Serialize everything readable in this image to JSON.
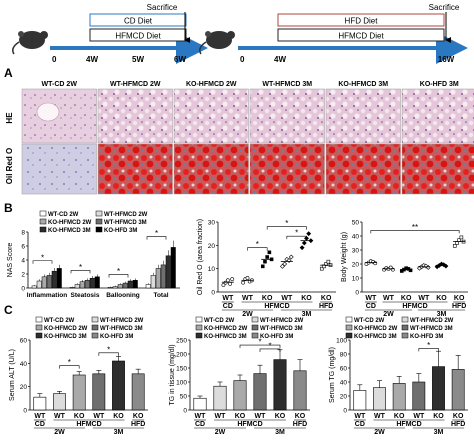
{
  "timeline": {
    "left": {
      "top_box": "CD Diet",
      "bottom_box": "HFMCD Diet",
      "sacrifice": "Sacrifice",
      "ticks": [
        "0",
        "4W",
        "5W",
        "6W"
      ]
    },
    "right": {
      "top_box": "HFD Diet",
      "bottom_box": "HFMCD Diet",
      "sacrifice": "Sacrifice",
      "ticks": [
        "0",
        "4W",
        "16W"
      ]
    },
    "colors": {
      "arrow": "#2a78c2",
      "cd_box": "#2a78c2",
      "hfd_box": "#b0453d"
    }
  },
  "panel_a": {
    "letter": "A",
    "columns": [
      "WT-CD 2W",
      "WT-HFMCD 2W",
      "KO-HFMCD 2W",
      "WT-HFMCD 3M",
      "KO-HFMCD 3M",
      "KO-HFD 3M"
    ],
    "rows": [
      "HE",
      "Oil Red O"
    ]
  },
  "panel_b": {
    "letter": "B",
    "legend": [
      "WT-CD 2W",
      "WT-HFMCD 2W",
      "KO-HFMCD 2W",
      "WT-HFMCD 3M",
      "KO-HFMCD 3M",
      "KO-HFD 3M"
    ]
  },
  "panel_c": {
    "letter": "C",
    "legend": [
      "WT-CD 2W",
      "WT-HFMCD 2W",
      "KO-HFMCD 2W",
      "WT-HFMCD 3M",
      "KO-HFMCD 3M",
      "KO-HFD 3M"
    ]
  },
  "group_labels": {
    "wt": "WT",
    "ko": "KO",
    "cd": "CD",
    "hfmcd": "HFMCD",
    "hfd": "HFD",
    "t2w": "2W",
    "t3m": "3M"
  },
  "chart_data": [
    {
      "type": "bar",
      "id": "nas",
      "ylabel": "NAS Score",
      "ylim": [
        0,
        8
      ],
      "yticks": [
        0,
        2,
        4,
        6,
        8
      ],
      "categories": [
        "Inflammation",
        "Steatosis",
        "Ballooning",
        "Total"
      ],
      "series": [
        {
          "name": "WT-CD 2W",
          "values": [
            0.3,
            0.1,
            0.1,
            0.5
          ]
        },
        {
          "name": "WT-HFMCD 2W",
          "values": [
            1.0,
            0.5,
            0.2,
            1.8
          ]
        },
        {
          "name": "KO-HFMCD 2W",
          "values": [
            1.6,
            0.9,
            0.5,
            2.8
          ]
        },
        {
          "name": "WT-HFMCD 3M",
          "values": [
            1.8,
            1.1,
            0.7,
            3.3
          ]
        },
        {
          "name": "KO-HFMCD 3M",
          "values": [
            2.4,
            1.4,
            1.0,
            4.6
          ]
        },
        {
          "name": "KO-HFD 3M",
          "values": [
            2.8,
            1.6,
            1.1,
            5.8
          ]
        }
      ],
      "colors": [
        "#ffffff",
        "#dcdcdc",
        "#a9a9a9",
        "#6f6f6f",
        "#2e2e2e",
        "#000000"
      ],
      "significance": [
        "*",
        "*",
        "*",
        "*"
      ]
    },
    {
      "type": "scatter",
      "id": "oilredo",
      "ylabel": "Oil Red O (area fraction)",
      "ylim": [
        0,
        30
      ],
      "yticks": [
        0,
        10,
        20,
        30
      ],
      "groups": [
        "WT-CD 2W",
        "WT-HFMCD 2W",
        "KO-HFMCD 2W",
        "WT-HFMCD 3M",
        "KO-HFMCD 3M",
        "KO-HFD 3M"
      ],
      "values": [
        [
          3,
          4,
          5,
          3.5,
          5.5
        ],
        [
          4,
          5.5,
          6,
          4.5,
          5
        ],
        [
          11,
          13,
          15,
          17,
          14
        ],
        [
          11,
          12,
          14,
          13.5,
          15
        ],
        [
          19,
          21,
          23,
          25,
          22
        ],
        [
          10,
          11,
          12,
          13,
          11.5
        ]
      ],
      "means": [
        4.2,
        5.0,
        14.0,
        13.1,
        22.0,
        11.5
      ],
      "significance": [
        "*",
        "*",
        "*"
      ]
    },
    {
      "type": "scatter",
      "id": "bodyweight",
      "ylabel": "Body Weight (g)",
      "ylim": [
        0,
        50
      ],
      "yticks": [
        0,
        10,
        20,
        30,
        40,
        50
      ],
      "groups": [
        "WT-CD 2W",
        "WT-HFMCD 2W",
        "KO-HFMCD 2W",
        "WT-HFMCD 3M",
        "KO-HFMCD 3M",
        "KO-HFD 3M"
      ],
      "values": [
        [
          20,
          21,
          22,
          21.5,
          20.5
        ],
        [
          16,
          17,
          16.5,
          17.5,
          16
        ],
        [
          15,
          16,
          17,
          16.5,
          15.5
        ],
        [
          17,
          18,
          19,
          18.5,
          17.5
        ],
        [
          18,
          19,
          20,
          19.5,
          18.5
        ],
        [
          33,
          35,
          37,
          39,
          36
        ]
      ],
      "means": [
        21,
        16.6,
        16,
        18,
        19,
        36
      ],
      "significance": [
        "**"
      ]
    },
    {
      "type": "bar",
      "id": "alt",
      "ylabel": "Serum ALT (U/L)",
      "ylim": [
        0,
        60
      ],
      "yticks": [
        0,
        20,
        40,
        60
      ],
      "categories": [
        "WT-CD 2W",
        "WT-HFMCD 2W",
        "KO-HFMCD 2W",
        "WT-HFMCD 3M",
        "KO-HFMCD 3M",
        "KO-HFD 3M"
      ],
      "values": [
        11,
        14,
        30,
        31,
        42,
        31
      ],
      "errors": [
        3,
        2,
        3,
        3,
        4,
        4
      ],
      "colors": [
        "#ffffff",
        "#dcdcdc",
        "#a9a9a9",
        "#6f6f6f",
        "#2e2e2e",
        "#8a8a8a"
      ],
      "significance": [
        "*",
        "*"
      ]
    },
    {
      "type": "bar",
      "id": "tg_tissue",
      "ylabel": "TG in tissue (mg/dl)",
      "ylim": [
        0,
        250
      ],
      "yticks": [
        0,
        50,
        100,
        150,
        200,
        250
      ],
      "categories": [
        "WT-CD 2W",
        "WT-HFMCD 2W",
        "KO-HFMCD 2W",
        "WT-HFMCD 3M",
        "KO-HFMCD 3M",
        "KO-HFD 3M"
      ],
      "values": [
        42,
        85,
        105,
        130,
        180,
        140
      ],
      "errors": [
        8,
        15,
        20,
        30,
        35,
        40
      ],
      "colors": [
        "#ffffff",
        "#dcdcdc",
        "#a9a9a9",
        "#6f6f6f",
        "#2e2e2e",
        "#8a8a8a"
      ],
      "significance": [
        "*",
        "*"
      ]
    },
    {
      "type": "bar",
      "id": "serum_tg",
      "ylabel": "Serum TG (mg/dl)",
      "ylim": [
        0,
        100
      ],
      "yticks": [
        0,
        20,
        40,
        60,
        80,
        100
      ],
      "categories": [
        "WT-CD 2W",
        "WT-HFMCD 2W",
        "KO-HFMCD 2W",
        "WT-HFMCD 3M",
        "KO-HFMCD 3M",
        "KO-HFD 3M"
      ],
      "values": [
        28,
        32,
        38,
        40,
        62,
        58
      ],
      "errors": [
        8,
        10,
        10,
        12,
        22,
        20
      ],
      "colors": [
        "#ffffff",
        "#dcdcdc",
        "#a9a9a9",
        "#6f6f6f",
        "#2e2e2e",
        "#8a8a8a"
      ],
      "significance": [
        "*"
      ]
    }
  ]
}
